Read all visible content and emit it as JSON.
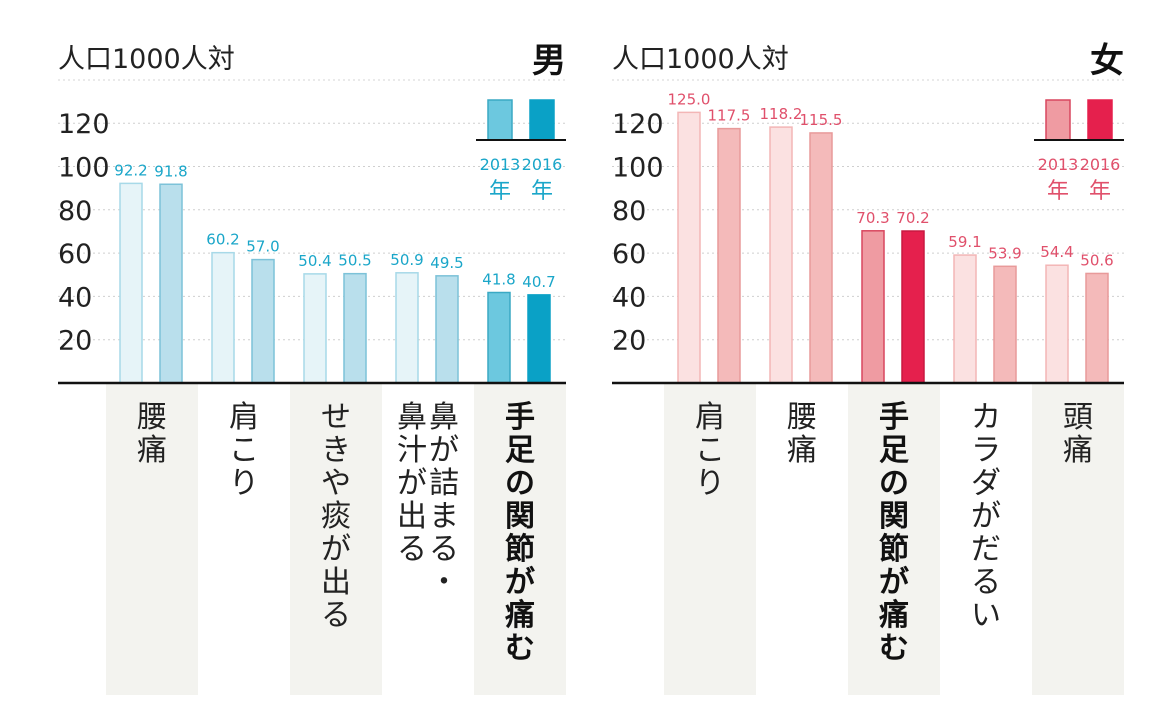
{
  "chart_data": [
    {
      "type": "bar",
      "panel": "male",
      "gender_label": "男",
      "unit_label": "人口1000人対",
      "ylim": [
        0,
        130
      ],
      "yticks": [
        "20",
        "40",
        "60",
        "80",
        "100",
        "120"
      ],
      "grid": "dotted horizontal",
      "legend": {
        "placement": "top-right",
        "years": [
          "2013",
          "2016"
        ],
        "suffix": "年"
      },
      "categories": [
        {
          "lines": [
            "腰",
            "痛"
          ],
          "highlight": false
        },
        {
          "lines": [
            "肩",
            "こ",
            "り"
          ],
          "highlight": false
        },
        {
          "lines": [
            "せ",
            "き",
            "や",
            "痰",
            "が",
            "出",
            "る"
          ],
          "highlight": false
        },
        {
          "lines": [
            "鼻",
            "が",
            "詰",
            "ま",
            "る",
            "・"
          ],
          "lines2": [
            "鼻",
            "汁",
            "が",
            "出",
            "る"
          ],
          "highlight": false
        },
        {
          "lines": [
            "手",
            "足",
            "の",
            "関",
            "節",
            "が",
            "痛",
            "む"
          ],
          "highlight": true
        }
      ],
      "series": [
        {
          "name": "2013",
          "values": [
            92.2,
            60.2,
            50.4,
            50.9,
            41.8
          ],
          "labels": [
            "92.2",
            "60.2",
            "50.4",
            "50.9",
            "41.8"
          ]
        },
        {
          "name": "2016",
          "values": [
            91.8,
            57.0,
            50.5,
            49.5,
            40.7
          ],
          "labels": [
            "91.8",
            "57.0",
            "50.5",
            "49.5",
            "40.7"
          ]
        }
      ],
      "colors": {
        "text": "#1aa6c9",
        "normal": [
          "#e6f4f8",
          "#b9dfec"
        ],
        "highlight": [
          "#6cc8df",
          "#0aa1c6"
        ],
        "stroke": [
          "#a7d9e8",
          "#7cc2d8"
        ],
        "legend": [
          "#6cc8df",
          "#0aa1c6"
        ]
      }
    },
    {
      "type": "bar",
      "panel": "female",
      "gender_label": "女",
      "unit_label": "人口1000人対",
      "ylim": [
        0,
        130
      ],
      "yticks": [
        "20",
        "40",
        "60",
        "80",
        "100",
        "120"
      ],
      "grid": "dotted horizontal",
      "legend": {
        "placement": "top-right",
        "years": [
          "2013",
          "2016"
        ],
        "suffix": "年"
      },
      "categories": [
        {
          "lines": [
            "肩",
            "こ",
            "り"
          ],
          "highlight": false
        },
        {
          "lines": [
            "腰",
            "痛"
          ],
          "highlight": false
        },
        {
          "lines": [
            "手",
            "足",
            "の",
            "関",
            "節",
            "が",
            "痛",
            "む"
          ],
          "highlight": true
        },
        {
          "lines": [
            "カ",
            "ラ",
            "ダ",
            "が",
            "だ",
            "る",
            "い"
          ],
          "highlight": false
        },
        {
          "lines": [
            "頭",
            "痛"
          ],
          "highlight": false
        }
      ],
      "series": [
        {
          "name": "2013",
          "values": [
            125.0,
            118.2,
            70.3,
            59.1,
            54.4
          ],
          "labels": [
            "125.0",
            "118.2",
            "70.3",
            "59.1",
            "54.4"
          ]
        },
        {
          "name": "2016",
          "values": [
            117.5,
            115.5,
            70.2,
            53.9,
            50.6
          ],
          "labels": [
            "117.5",
            "115.5",
            "70.2",
            "53.9",
            "50.6"
          ]
        }
      ],
      "colors": {
        "text": "#e0506b",
        "normal": [
          "#fbe1e1",
          "#f4baba"
        ],
        "highlight": [
          "#ef9ba2",
          "#e5204d"
        ],
        "stroke": [
          "#f3b6b6",
          "#e89a9a"
        ],
        "legend": [
          "#ef9ba2",
          "#e5204d"
        ]
      }
    }
  ]
}
